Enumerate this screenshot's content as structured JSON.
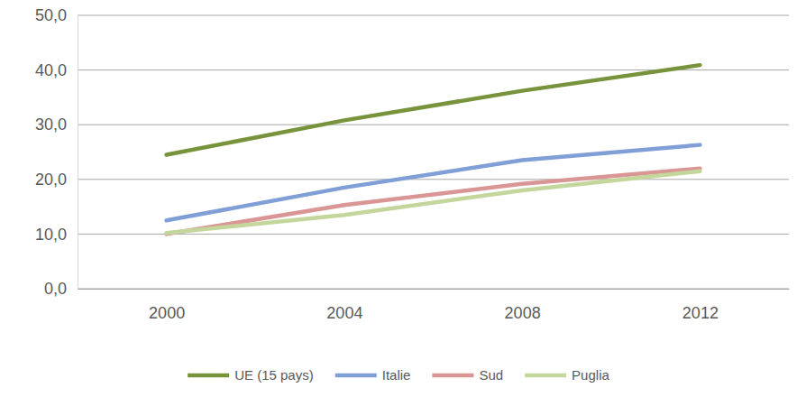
{
  "chart_data": {
    "type": "line",
    "categories": [
      "2000",
      "2004",
      "2008",
      "2012"
    ],
    "series": [
      {
        "name": "UE (15 pays)",
        "color": "#77933c",
        "values": [
          24.5,
          30.8,
          36.2,
          40.9
        ]
      },
      {
        "name": "Italie",
        "color": "#7f9fd6",
        "values": [
          12.5,
          18.5,
          23.5,
          26.3
        ]
      },
      {
        "name": "Sud",
        "color": "#d99694",
        "values": [
          10.0,
          15.3,
          19.2,
          22.0
        ]
      },
      {
        "name": "Puglia",
        "color": "#c3d69b",
        "values": [
          10.2,
          13.5,
          18.0,
          21.5
        ]
      }
    ],
    "ylim": [
      0,
      50
    ],
    "yticks": [
      {
        "value": 0,
        "label": "0,0"
      },
      {
        "value": 10,
        "label": "10,0"
      },
      {
        "value": 20,
        "label": "20,0"
      },
      {
        "value": 30,
        "label": "30,0"
      },
      {
        "value": 40,
        "label": "40,0"
      },
      {
        "value": 50,
        "label": "50,0"
      }
    ],
    "grid": true,
    "legend": "bottom"
  }
}
